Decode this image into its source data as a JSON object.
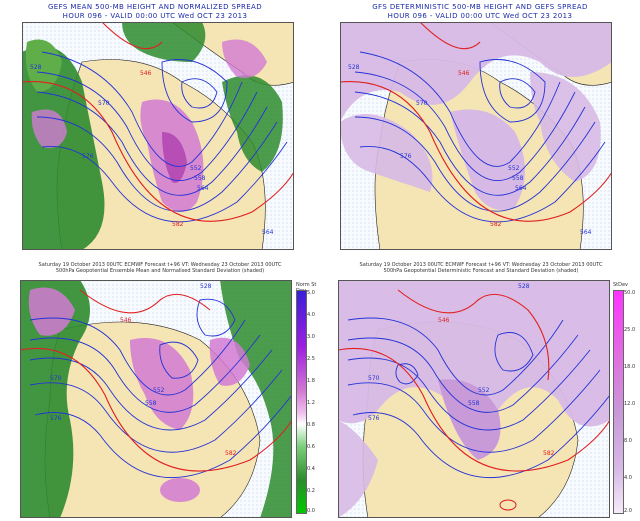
{
  "colors": {
    "green": "#2e8b2e",
    "green_light": "#5fae4a",
    "magenta": "#d27ad2",
    "magenta_dark": "#b64eb6",
    "land": "#f5e4b4",
    "ocean": "#f7fbff",
    "contour": "#2433d6",
    "red": "#e02020",
    "lavender": "#d7b9e6"
  },
  "panels": [
    {
      "title_line1": "GEFS MEAN 500-MB HEIGHT AND NORMALIZED SPREAD",
      "title_line2": "HOUR 096 - VALID 00:00 UTC Wed OCT 23 2013",
      "contour_labels": [
        "540",
        "546",
        "552",
        "558",
        "564",
        "570",
        "576",
        "582",
        "528",
        "534"
      ]
    },
    {
      "title_line1": "GFS DETERMINISTIC 500-MB HEIGHT AND GEFS SPREAD",
      "title_line2": "HOUR 096 - VALID 00:00 UTC Wed OCT 23 2013",
      "contour_labels": [
        "540",
        "546",
        "552",
        "558",
        "564",
        "570",
        "576",
        "582",
        "528",
        "534"
      ]
    },
    {
      "title_line1": "Saturday 19 October 2013 00UTC ECMWF Forecast t+96 VT: Wednesday 23 October 2013 00UTC",
      "title_line2": "500hPa Geopotential Ensemble Mean and Normalised Standard Deviation (shaded)",
      "colorbar_title": "Norm St Dev",
      "colorbar_labels": [
        "5.0",
        "4.0",
        "3.0",
        "2.5",
        "1.8",
        "1.2",
        "0.8",
        "0.6",
        "0.4",
        "0.2",
        "0.0"
      ],
      "contour_labels": [
        "540",
        "546",
        "552",
        "558",
        "564",
        "570",
        "576",
        "582",
        "528"
      ]
    },
    {
      "title_line1": "Saturday 19 October 2013 00UTC ECMWF Forecast t+96 VT: Wednesday 23 October 2013 00UTC",
      "title_line2": "500hPa Geopotential Deterministic Forecast and Standard Deviation (shaded)",
      "colorbar_title": "StDev",
      "colorbar_labels": [
        "50.0",
        "25.0",
        "18.0",
        "12.0",
        "8.0",
        "4.0",
        "2.0"
      ],
      "contour_labels": [
        "540",
        "546",
        "552",
        "558",
        "564",
        "570",
        "576",
        "582",
        "528"
      ]
    }
  ]
}
